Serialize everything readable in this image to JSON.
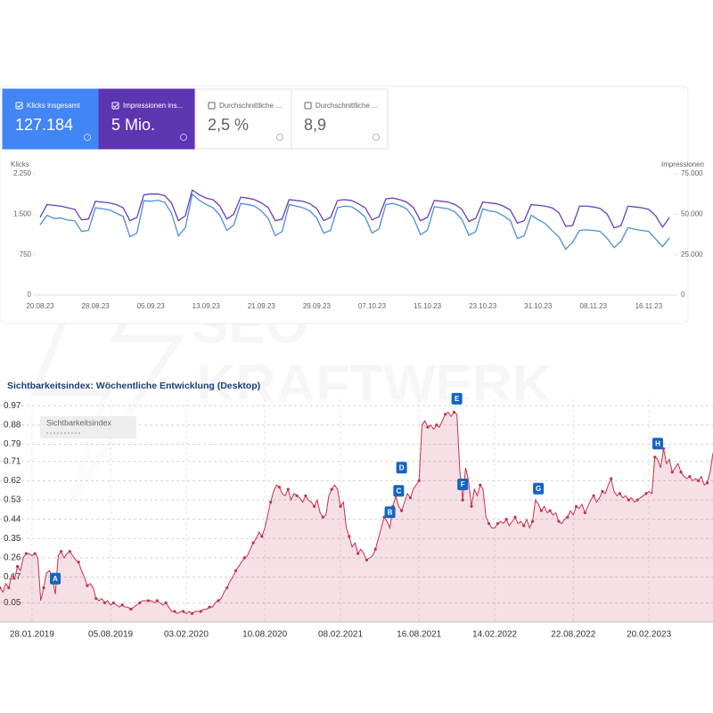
{
  "cards": [
    {
      "label": "Klicks insgesamt",
      "value": "127.184",
      "checked": true,
      "color": "#4285f4"
    },
    {
      "label": "Impressionen ins...",
      "value": "5 Mio.",
      "checked": true,
      "color": "#5e35b1"
    },
    {
      "label": "Durchschnittliche ...",
      "value": "2,5 %",
      "checked": false,
      "color": "#ffffff"
    },
    {
      "label": "Durchschnittliche ...",
      "value": "8,9",
      "checked": false,
      "color": "#ffffff"
    }
  ],
  "watermark": [
    "SEO",
    "KRAFTWERK"
  ],
  "chart_data": [
    {
      "type": "line",
      "ylabel": "Klicks",
      "y2label": "Impressionen",
      "categories": [
        "20.08.23",
        null,
        null,
        null,
        null,
        null,
        null,
        null,
        "28.08.23",
        null,
        null,
        null,
        null,
        null,
        null,
        null,
        "05.09.23",
        null,
        null,
        null,
        null,
        null,
        null,
        null,
        "13.09.23",
        null,
        null,
        null,
        null,
        null,
        null,
        null,
        "21.09.23",
        null,
        null,
        null,
        null,
        null,
        null,
        null,
        "29.09.23",
        null,
        null,
        null,
        null,
        null,
        null,
        null,
        "07.10.23",
        null,
        null,
        null,
        null,
        null,
        null,
        null,
        "15.10.23",
        null,
        null,
        null,
        null,
        null,
        null,
        null,
        "23.10.23",
        null,
        null,
        null,
        null,
        null,
        null,
        null,
        "31.10.23",
        null,
        null,
        null,
        null,
        null,
        null,
        null,
        "08.11.23",
        null,
        null,
        null,
        null,
        null,
        null,
        null,
        "16.11.23",
        null,
        null,
        null
      ],
      "ylim": [
        0,
        2250
      ],
      "yticks": [
        0,
        750,
        {
          "value": 1500,
          "label": "1.500"
        },
        {
          "value": 2250,
          "label": "2.250"
        }
      ],
      "y2lim": [
        0,
        75000
      ],
      "y2ticks": [
        0,
        {
          "value": 25000,
          "label": "25.000"
        },
        {
          "value": 50000,
          "label": "50.000"
        },
        {
          "value": 75000,
          "label": "75.000"
        }
      ],
      "series": [
        {
          "color": "#4a8fd8",
          "values": [
            1300,
            1480,
            1420,
            1430,
            1390,
            1380,
            1180,
            1200,
            1620,
            1600,
            1580,
            1520,
            1460,
            1080,
            1150,
            1750,
            1740,
            1760,
            1720,
            1520,
            1100,
            1250,
            1870,
            1760,
            1680,
            1620,
            1480,
            1200,
            1300,
            1700,
            1680,
            1650,
            1560,
            1420,
            1100,
            1180,
            1680,
            1650,
            1620,
            1560,
            1430,
            1150,
            1200,
            1620,
            1650,
            1640,
            1560,
            1450,
            1150,
            1230,
            1680,
            1700,
            1660,
            1600,
            1430,
            1120,
            1200,
            1640,
            1620,
            1600,
            1540,
            1400,
            1110,
            1180,
            1600,
            1560,
            1540,
            1470,
            1380,
            1050,
            1100,
            1480,
            1400,
            1330,
            1200,
            1080,
            850,
            980,
            1200,
            1210,
            1200,
            1180,
            1050,
            880,
            1000,
            1250,
            1220,
            1200,
            1180,
            1040,
            900,
            1060
          ]
        },
        {
          "color": "#6a3db8",
          "axis": "y2",
          "values": [
            48000,
            56000,
            55500,
            55000,
            54000,
            53000,
            46500,
            47000,
            58000,
            57500,
            57000,
            56000,
            54000,
            46000,
            48000,
            62000,
            62500,
            62500,
            61500,
            57000,
            46000,
            49000,
            65000,
            62000,
            60000,
            59000,
            55000,
            47000,
            50000,
            60500,
            60000,
            59000,
            57000,
            54000,
            46000,
            47000,
            59000,
            58500,
            58000,
            56500,
            53500,
            46000,
            48000,
            58500,
            59000,
            58500,
            56500,
            54000,
            46500,
            48500,
            59500,
            60000,
            59000,
            57500,
            54000,
            46000,
            48000,
            58500,
            58000,
            57500,
            56000,
            53000,
            45500,
            47500,
            57500,
            57000,
            56500,
            55000,
            52500,
            44500,
            46000,
            56000,
            55500,
            55000,
            54000,
            51000,
            42500,
            43000,
            55000,
            55000,
            54500,
            53500,
            50000,
            41500,
            43000,
            55000,
            54500,
            54000,
            53000,
            49000,
            42000,
            48000
          ]
        }
      ]
    },
    {
      "type": "area",
      "title": "Sichtbarkeitsindex: Wöchentliche Entwicklung (Desktop)",
      "categories": [
        null,
        null,
        null,
        null,
        null,
        null,
        null,
        null,
        null,
        null,
        null,
        "28.01.2019",
        null,
        null,
        null,
        null,
        null,
        null,
        null,
        null,
        null,
        null,
        null,
        null,
        null,
        null,
        null,
        null,
        null,
        null,
        null,
        null,
        null,
        null,
        null,
        null,
        null,
        null,
        "05.08.2019",
        null,
        null,
        null,
        null,
        null,
        null,
        null,
        null,
        null,
        null,
        null,
        null,
        null,
        null,
        null,
        null,
        null,
        null,
        null,
        null,
        null,
        null,
        null,
        null,
        null,
        "03.02.2020",
        null,
        null,
        null,
        null,
        null,
        null,
        null,
        null,
        null,
        null,
        null,
        null,
        null,
        null,
        null,
        null,
        null,
        null,
        null,
        null,
        null,
        null,
        null,
        null,
        null,
        null,
        "10.08.2020",
        null,
        null,
        null,
        null,
        null,
        null,
        null,
        null,
        null,
        null,
        null,
        null,
        null,
        null,
        null,
        null,
        null,
        null,
        null,
        null,
        null,
        null,
        null,
        null,
        null,
        "08.02.2021",
        null,
        null,
        null,
        null,
        null,
        null,
        null,
        null,
        null,
        null,
        null,
        null,
        null,
        null,
        null,
        null,
        null,
        null,
        null,
        null,
        null,
        null,
        null,
        null,
        null,
        null,
        "16.08.2021",
        null,
        null,
        null,
        null,
        null,
        null,
        null,
        null,
        null,
        null,
        null,
        null,
        null,
        null,
        null,
        null,
        null,
        null,
        null,
        null,
        null,
        null,
        null,
        null,
        null,
        "14.02.2022",
        null,
        null,
        null,
        null,
        null,
        null,
        null,
        null,
        null,
        null,
        null,
        null,
        null,
        null,
        null,
        null,
        null,
        null,
        null,
        null,
        null,
        null,
        null,
        null,
        null,
        null,
        "22.08.2022",
        null,
        null,
        null,
        null,
        null,
        null,
        null,
        null,
        null,
        null,
        null,
        null,
        null,
        null,
        null,
        null,
        null,
        null,
        null,
        null,
        null,
        null,
        null,
        null,
        null,
        "20.02.2023",
        null,
        null,
        null,
        null,
        null,
        null,
        null,
        null,
        null,
        null,
        null,
        null,
        null,
        null,
        null,
        null,
        null,
        null,
        null,
        null,
        null,
        null
      ],
      "ylim": [
        -0.04,
        1.0
      ],
      "yticks": [
        0.05,
        0.17,
        0.26,
        0.35,
        0.44,
        0.53,
        0.62,
        0.71,
        0.79,
        0.88,
        0.97
      ],
      "grid": true,
      "series": [
        {
          "name": "Sichtbarkeitsindex",
          "color": "#c3324f",
          "values": [
            0.12,
            0.1,
            0.14,
            0.12,
            0.18,
            0.16,
            0.22,
            0.2,
            0.26,
            0.28,
            0.28,
            0.27,
            0.28,
            0.26,
            0.06,
            0.12,
            0.19,
            0.2,
            0.17,
            0.09,
            0.27,
            0.29,
            0.26,
            0.28,
            0.29,
            0.27,
            0.25,
            0.24,
            0.2,
            0.17,
            0.13,
            0.14,
            0.12,
            0.07,
            0.06,
            0.07,
            0.05,
            0.06,
            0.04,
            0.05,
            0.04,
            0.03,
            0.04,
            0.03,
            0.03,
            0.02,
            0.03,
            0.04,
            0.05,
            0.06,
            0.06,
            0.06,
            0.06,
            0.05,
            0.06,
            0.05,
            0.04,
            0.05,
            0.03,
            0.01,
            0.01,
            0.0,
            0.01,
            0.01,
            0.0,
            0.01,
            0.0,
            0.01,
            0.01,
            0.01,
            0.02,
            0.02,
            0.03,
            0.03,
            0.05,
            0.06,
            0.07,
            0.1,
            0.12,
            0.15,
            0.17,
            0.2,
            0.22,
            0.24,
            0.26,
            0.27,
            0.3,
            0.33,
            0.35,
            0.38,
            0.36,
            0.4,
            0.46,
            0.52,
            0.57,
            0.6,
            0.59,
            0.56,
            0.55,
            0.58,
            0.53,
            0.56,
            0.55,
            0.54,
            0.52,
            0.55,
            0.53,
            0.52,
            0.5,
            0.53,
            0.47,
            0.45,
            0.46,
            0.55,
            0.58,
            0.6,
            0.58,
            0.5,
            0.52,
            0.4,
            0.36,
            0.31,
            0.33,
            0.28,
            0.3,
            0.28,
            0.25,
            0.26,
            0.27,
            0.3,
            0.35,
            0.4,
            0.45,
            0.43,
            0.4,
            0.5,
            0.55,
            0.5,
            0.48,
            0.52,
            0.56,
            0.54,
            0.58,
            0.6,
            0.62,
            0.88,
            0.9,
            0.87,
            0.88,
            0.86,
            0.88,
            0.87,
            0.9,
            0.93,
            0.94,
            0.92,
            0.94,
            0.93,
            0.67,
            0.53,
            0.68,
            0.62,
            0.5,
            0.58,
            0.55,
            0.6,
            0.58,
            0.45,
            0.42,
            0.4,
            0.4,
            0.42,
            0.43,
            0.42,
            0.44,
            0.41,
            0.43,
            0.45,
            0.42,
            0.43,
            0.41,
            0.44,
            0.4,
            0.43,
            0.53,
            0.51,
            0.48,
            0.5,
            0.47,
            0.48,
            0.46,
            0.47,
            0.43,
            0.42,
            0.44,
            0.45,
            0.48,
            0.46,
            0.5,
            0.49,
            0.51,
            0.47,
            0.5,
            0.53,
            0.55,
            0.52,
            0.54,
            0.57,
            0.56,
            0.6,
            0.63,
            0.57,
            0.55,
            0.56,
            0.54,
            0.55,
            0.53,
            0.54,
            0.52,
            0.53,
            0.54,
            0.55,
            0.56,
            0.57,
            0.56,
            0.73,
            0.72,
            0.68,
            0.77,
            0.7,
            0.72,
            0.66,
            0.68,
            0.7,
            0.66,
            0.64,
            0.63,
            0.64,
            0.62,
            0.63,
            0.62,
            0.64,
            0.6,
            0.61,
            0.66,
            0.75
          ]
        }
      ],
      "annotations": [
        {
          "label": "A",
          "index": 19
        },
        {
          "label": "B",
          "index": 134
        },
        {
          "label": "C",
          "index": 137
        },
        {
          "label": "D",
          "index": 138
        },
        {
          "label": "E",
          "index": 157
        },
        {
          "label": "F",
          "index": 159
        },
        {
          "label": "G",
          "index": 185
        },
        {
          "label": "H",
          "index": 226
        }
      ]
    }
  ]
}
